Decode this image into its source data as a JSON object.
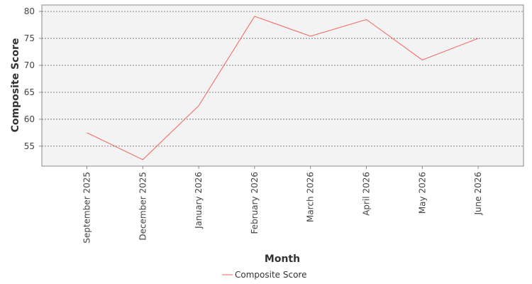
{
  "chart_data": {
    "type": "line",
    "xlabel": "Month",
    "ylabel": "Composite Score",
    "categories": [
      "September 2025",
      "December 2025",
      "January 2026",
      "February 2026",
      "March 2026",
      "April 2026",
      "May 2026",
      "June 2026"
    ],
    "series": [
      {
        "name": "Composite Score",
        "values": [
          57.5,
          52.5,
          62.5,
          79.1,
          75.4,
          78.5,
          71.0,
          75.0
        ],
        "color": "#f4605a"
      }
    ],
    "ylim": [
      51.3,
      81.2
    ],
    "yticks": [
      55,
      60,
      65,
      70,
      75,
      80
    ],
    "grid": "horizontal dashed",
    "legend": "bottom-center"
  }
}
